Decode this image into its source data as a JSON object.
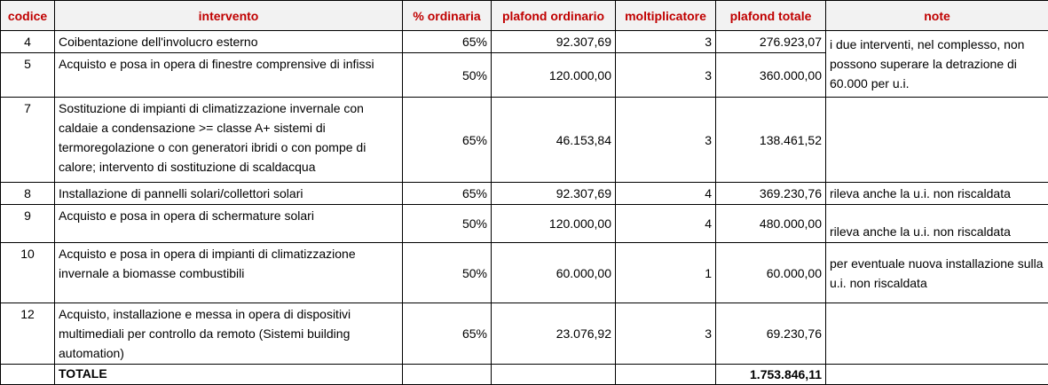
{
  "headers": {
    "codice": "codice",
    "intervento": "intervento",
    "perc": "% ordinaria",
    "plafond_ord": "plafond ordinario",
    "mult": "moltiplicatore",
    "plafond_tot": "plafond totale",
    "note": "note"
  },
  "rows": [
    {
      "codice": "4",
      "intervento": "Coibentazione dell'involucro esterno",
      "perc": "65%",
      "plafond_ord": "92.307,69",
      "mult": "3",
      "plafond_tot": "276.923,07"
    },
    {
      "codice": "5",
      "intervento": "Acquisto e posa in opera di finestre comprensive di infissi",
      "perc": "50%",
      "plafond_ord": "120.000,00",
      "mult": "3",
      "plafond_tot": "360.000,00"
    },
    {
      "codice": "7",
      "intervento": "Sostituzione di impianti di climatizzazione invernale con caldaie a condensazione >= classe A+ sistemi di termoregolazione o con generatori ibridi o con pompe di calore; intervento di sostituzione di scaldacqua",
      "perc": "65%",
      "plafond_ord": "46.153,84",
      "mult": "3",
      "plafond_tot": "138.461,52",
      "note": ""
    },
    {
      "codice": "8",
      "intervento": "Installazione di pannelli solari/collettori solari",
      "perc": "65%",
      "plafond_ord": "92.307,69",
      "mult": "4",
      "plafond_tot": "369.230,76",
      "note": "rileva anche la u.i. non riscaldata"
    },
    {
      "codice": "9",
      "intervento": "Acquisto e posa in opera di schermature solari",
      "perc": "50%",
      "plafond_ord": "120.000,00",
      "mult": "4",
      "plafond_tot": "480.000,00",
      "note": "rileva anche la u.i. non riscaldata"
    },
    {
      "codice": "10",
      "intervento": "Acquisto e posa in opera di impianti di climatizzazione invernale a biomasse combustibili",
      "perc": "50%",
      "plafond_ord": "60.000,00",
      "mult": "1",
      "plafond_tot": "60.000,00",
      "note": "per eventuale nuova installazione sulla u.i. non riscaldata"
    },
    {
      "codice": "12",
      "intervento": "Acquisto, installazione e messa in opera di dispositivi multimediali per controllo da remoto (Sistemi building automation)",
      "perc": "65%",
      "plafond_ord": "23.076,92",
      "mult": "3",
      "plafond_tot": "69.230,76",
      "note": ""
    }
  ],
  "merged_note_4_5": "i due interventi, nel complesso, non possono superare la detrazione di 60.000 per u.i.",
  "totale": {
    "label": "TOTALE",
    "plafond_tot": "1.753.846,11"
  }
}
